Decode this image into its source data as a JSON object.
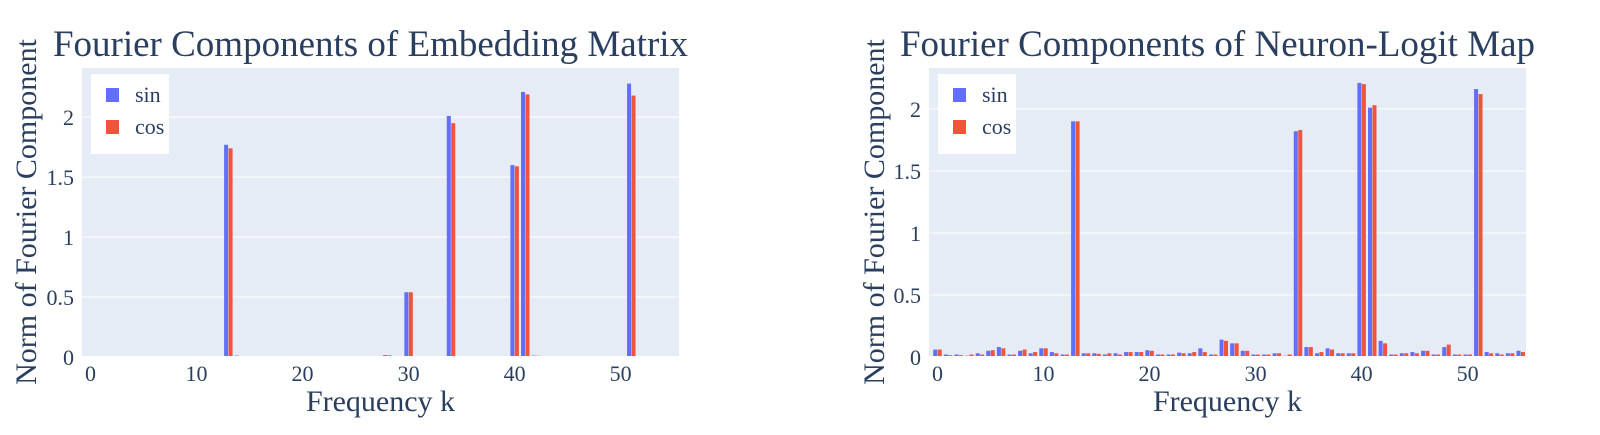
{
  "colors": {
    "sin": "#636efa",
    "cos": "#EF553B",
    "plot_bg": "#E5ECF6",
    "grid": "#ffffff",
    "text": "#2a3f5f"
  },
  "chart_data": [
    {
      "type": "bar",
      "title": "Fourier Components of Embedding Matrix",
      "xlabel": "Frequency k",
      "ylabel": "Norm of Fourier Component",
      "xlim": [
        -0.8,
        55.5
      ],
      "ylim": [
        0,
        2.41
      ],
      "xticks": [
        0,
        10,
        20,
        30,
        40,
        50
      ],
      "yticks": [
        0,
        0.5,
        1,
        1.5,
        2
      ],
      "ytick_labels": [
        "0",
        "0.5",
        "1",
        "1.5",
        "2"
      ],
      "grid": true,
      "legend": "top-left",
      "x": [
        0,
        1,
        2,
        3,
        4,
        5,
        6,
        7,
        8,
        9,
        10,
        11,
        12,
        13,
        14,
        15,
        16,
        17,
        18,
        19,
        20,
        21,
        22,
        23,
        24,
        25,
        26,
        27,
        28,
        29,
        30,
        31,
        32,
        33,
        34,
        35,
        36,
        37,
        38,
        39,
        40,
        41,
        42,
        43,
        44,
        45,
        46,
        47,
        48,
        49,
        50,
        51,
        52,
        53,
        54,
        55
      ],
      "series": [
        {
          "name": "sin",
          "values": [
            0.003,
            0.003,
            0.003,
            0.003,
            0.003,
            0.003,
            0.003,
            0.003,
            0.003,
            0.003,
            0.003,
            0.003,
            0.003,
            1.77,
            0.012,
            0.003,
            0.003,
            0.003,
            0.003,
            0.003,
            0.003,
            0.003,
            0.003,
            0.003,
            0.003,
            0.003,
            0.003,
            0.003,
            0.016,
            0.003,
            0.54,
            0.003,
            0.003,
            0.003,
            2.01,
            0.003,
            0.003,
            0.003,
            0.003,
            0.003,
            1.6,
            2.21,
            0.012,
            0.003,
            0.003,
            0.003,
            0.003,
            0.003,
            0.003,
            0.003,
            0.003,
            2.28,
            0.003,
            0.003,
            0.003,
            0.003
          ]
        },
        {
          "name": "cos",
          "values": [
            0.003,
            0.003,
            0.003,
            0.003,
            0.003,
            0.003,
            0.003,
            0.003,
            0.003,
            0.003,
            0.003,
            0.003,
            0.003,
            1.74,
            0.008,
            0.003,
            0.003,
            0.003,
            0.003,
            0.003,
            0.003,
            0.003,
            0.003,
            0.003,
            0.003,
            0.003,
            0.003,
            0.003,
            0.014,
            0.003,
            0.54,
            0.003,
            0.003,
            0.003,
            1.95,
            0.003,
            0.003,
            0.003,
            0.003,
            0.003,
            1.59,
            2.19,
            0.01,
            0.003,
            0.003,
            0.003,
            0.003,
            0.003,
            0.003,
            0.003,
            0.003,
            2.18,
            0.003,
            0.003,
            0.003,
            0.003
          ]
        }
      ]
    },
    {
      "type": "bar",
      "title": "Fourier Components of Neuron-Logit Map",
      "xlabel": "Frequency k",
      "ylabel": "Norm of Fourier Component",
      "xlim": [
        -0.8,
        55.5
      ],
      "ylim": [
        0,
        2.33
      ],
      "xticks": [
        0,
        10,
        20,
        30,
        40,
        50
      ],
      "yticks": [
        0,
        0.5,
        1,
        1.5,
        2
      ],
      "ytick_labels": [
        "0",
        "0.5",
        "1",
        "1.5",
        "2"
      ],
      "grid": true,
      "legend": "top-left",
      "x": [
        0,
        1,
        2,
        3,
        4,
        5,
        6,
        7,
        8,
        9,
        10,
        11,
        12,
        13,
        14,
        15,
        16,
        17,
        18,
        19,
        20,
        21,
        22,
        23,
        24,
        25,
        26,
        27,
        28,
        29,
        30,
        31,
        32,
        33,
        34,
        35,
        36,
        37,
        38,
        39,
        40,
        41,
        42,
        43,
        44,
        45,
        46,
        47,
        48,
        49,
        50,
        51,
        52,
        53,
        54,
        55
      ],
      "series": [
        {
          "name": "sin",
          "values": [
            0.06,
            0.02,
            0.02,
            0.01,
            0.03,
            0.05,
            0.08,
            0.02,
            0.05,
            0.03,
            0.07,
            0.04,
            0.02,
            1.9,
            0.03,
            0.03,
            0.02,
            0.03,
            0.04,
            0.04,
            0.055,
            0.02,
            0.02,
            0.035,
            0.03,
            0.07,
            0.02,
            0.14,
            0.11,
            0.05,
            0.02,
            0.02,
            0.03,
            0.01,
            1.82,
            0.08,
            0.03,
            0.07,
            0.03,
            0.03,
            2.21,
            2.01,
            0.13,
            0.02,
            0.03,
            0.04,
            0.05,
            0.02,
            0.08,
            0.02,
            0.02,
            2.16,
            0.04,
            0.03,
            0.03,
            0.05
          ]
        },
        {
          "name": "cos",
          "values": [
            0.06,
            0.015,
            0.015,
            0.02,
            0.02,
            0.055,
            0.07,
            0.02,
            0.06,
            0.04,
            0.07,
            0.03,
            0.02,
            1.9,
            0.03,
            0.025,
            0.03,
            0.02,
            0.04,
            0.04,
            0.05,
            0.02,
            0.02,
            0.03,
            0.04,
            0.04,
            0.02,
            0.13,
            0.11,
            0.05,
            0.02,
            0.02,
            0.03,
            0.02,
            1.83,
            0.08,
            0.04,
            0.06,
            0.03,
            0.03,
            2.2,
            2.03,
            0.11,
            0.02,
            0.03,
            0.03,
            0.05,
            0.02,
            0.1,
            0.02,
            0.02,
            2.12,
            0.03,
            0.02,
            0.03,
            0.04
          ]
        }
      ]
    }
  ]
}
